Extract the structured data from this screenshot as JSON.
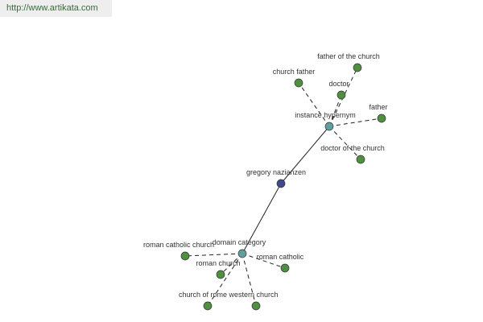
{
  "header": {
    "url": "http://www.artikata.com"
  },
  "nodes": [
    {
      "label": "gregory nazianzen"
    },
    {
      "label": "instance hypernym"
    },
    {
      "label": "domain category"
    },
    {
      "label": "father of the church"
    },
    {
      "label": "church father"
    },
    {
      "label": "doctor"
    },
    {
      "label": "father"
    },
    {
      "label": "doctor of the church"
    },
    {
      "label": "roman catholic church"
    },
    {
      "label": "roman church"
    },
    {
      "label": "roman catholic"
    },
    {
      "label": "church of rome"
    },
    {
      "label": "western church"
    }
  ]
}
